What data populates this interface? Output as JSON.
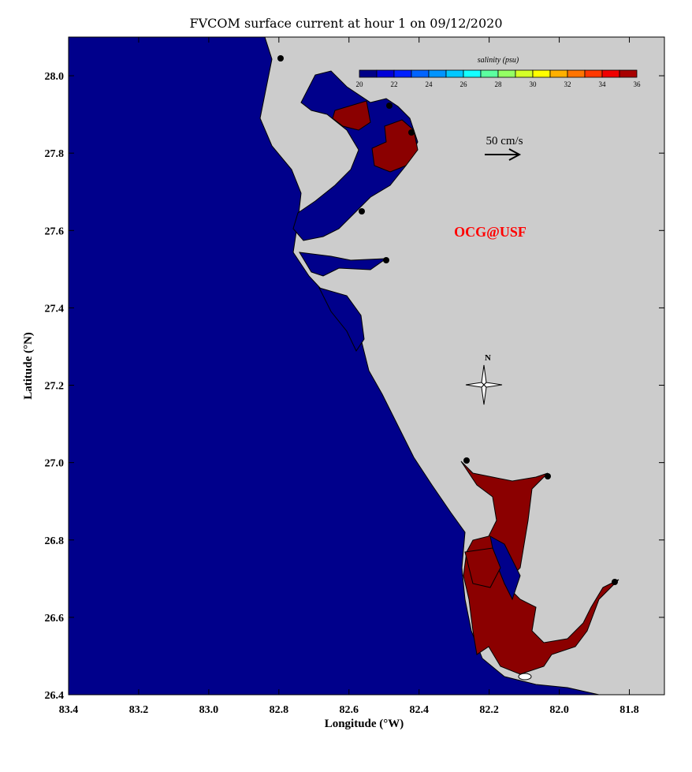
{
  "title": "FVCOM surface current at hour 1 on 09/12/2020",
  "xaxis": {
    "label": "Longitude (°W)",
    "range": [
      83.4,
      81.7
    ],
    "ticks": [
      "83.4",
      "83.2",
      "83.0",
      "82.8",
      "82.6",
      "82.4",
      "82.2",
      "82.0",
      "81.8"
    ]
  },
  "yaxis": {
    "label": "Latitude (°N)",
    "range": [
      26.4,
      28.1
    ],
    "ticks": [
      "28.0",
      "27.8",
      "27.6",
      "27.4",
      "27.2",
      "27.0",
      "26.8",
      "26.6",
      "26.4"
    ]
  },
  "colorbar": {
    "label": "salinity (psu)",
    "range": [
      20,
      36
    ],
    "tick_labels": [
      "20",
      "22",
      "24",
      "26",
      "28",
      "30",
      "32",
      "34",
      "36"
    ],
    "colors": [
      "#000088",
      "#0000d8",
      "#0020ff",
      "#0064ff",
      "#0094ff",
      "#00c8ff",
      "#14ffff",
      "#5cffa0",
      "#94ff64",
      "#d4ff28",
      "#ffff00",
      "#ffb000",
      "#ff7400",
      "#ff3800",
      "#f00000",
      "#a80000"
    ]
  },
  "scale_arrow": {
    "label": "50 cm/s"
  },
  "compass": {
    "label": "N"
  },
  "watermark": "OCG@USF",
  "colors": {
    "water_low_salinity": "#00008b",
    "high_salinity": "#8b0000",
    "land": "#cccccc",
    "watermark": "#ff0000"
  }
}
